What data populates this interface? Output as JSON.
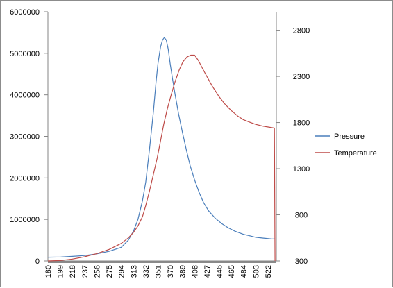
{
  "chart_data": {
    "type": "line",
    "title": "",
    "xlabel": "",
    "ylabel": "",
    "ylabel_right": "",
    "x_tick_labels": [
      "180",
      "199",
      "218",
      "237",
      "256",
      "275",
      "294",
      "313",
      "332",
      "351",
      "370",
      "389",
      "408",
      "427",
      "446",
      "465",
      "484",
      "503",
      "522"
    ],
    "x_range": [
      180,
      535
    ],
    "y_left": {
      "ylim": [
        0,
        6000000
      ],
      "ticks": [
        0,
        1000000,
        2000000,
        3000000,
        4000000,
        5000000,
        6000000
      ]
    },
    "y_right": {
      "ylim": [
        300,
        3000
      ],
      "ticks": [
        300,
        800,
        1300,
        1800,
        2300,
        2800
      ]
    },
    "grid": false,
    "legend_position": "right",
    "series": [
      {
        "name": "Pressure",
        "axis": "left",
        "color": "#4a7ebb",
        "x": [
          180,
          200,
          218,
          237,
          256,
          275,
          294,
          305,
          313,
          320,
          327,
          332,
          338,
          344,
          348,
          351,
          355,
          358,
          361,
          364,
          367,
          370,
          374,
          378,
          383,
          389,
          395,
          401,
          408,
          415,
          422,
          430,
          440,
          450,
          460,
          470,
          484,
          495,
          503,
          515,
          528,
          533
        ],
        "y": [
          90000,
          95000,
          110000,
          130000,
          170000,
          230000,
          330000,
          500000,
          720000,
          1000000,
          1450000,
          1900000,
          2700000,
          3600000,
          4300000,
          4750000,
          5150000,
          5320000,
          5380000,
          5320000,
          5100000,
          4750000,
          4350000,
          3980000,
          3550000,
          3100000,
          2680000,
          2300000,
          1950000,
          1650000,
          1400000,
          1200000,
          1030000,
          900000,
          800000,
          720000,
          640000,
          600000,
          570000,
          550000,
          530000,
          530000
        ]
      },
      {
        "name": "Temperature",
        "axis": "right",
        "color": "#be4b48",
        "x": [
          180,
          200,
          218,
          237,
          256,
          275,
          294,
          305,
          313,
          320,
          327,
          332,
          338,
          344,
          350,
          355,
          360,
          366,
          372,
          378,
          384,
          390,
          396,
          402,
          408,
          414,
          420,
          427,
          435,
          446,
          455,
          465,
          475,
          484,
          495,
          503,
          515,
          528,
          532,
          533
        ],
        "y": [
          300,
          305,
          320,
          345,
          380,
          425,
          490,
          550,
          610,
          680,
          780,
          900,
          1060,
          1240,
          1420,
          1600,
          1780,
          1960,
          2110,
          2250,
          2370,
          2460,
          2510,
          2530,
          2530,
          2470,
          2390,
          2300,
          2200,
          2080,
          2000,
          1930,
          1870,
          1830,
          1800,
          1780,
          1760,
          1745,
          1740,
          300
        ]
      }
    ]
  }
}
